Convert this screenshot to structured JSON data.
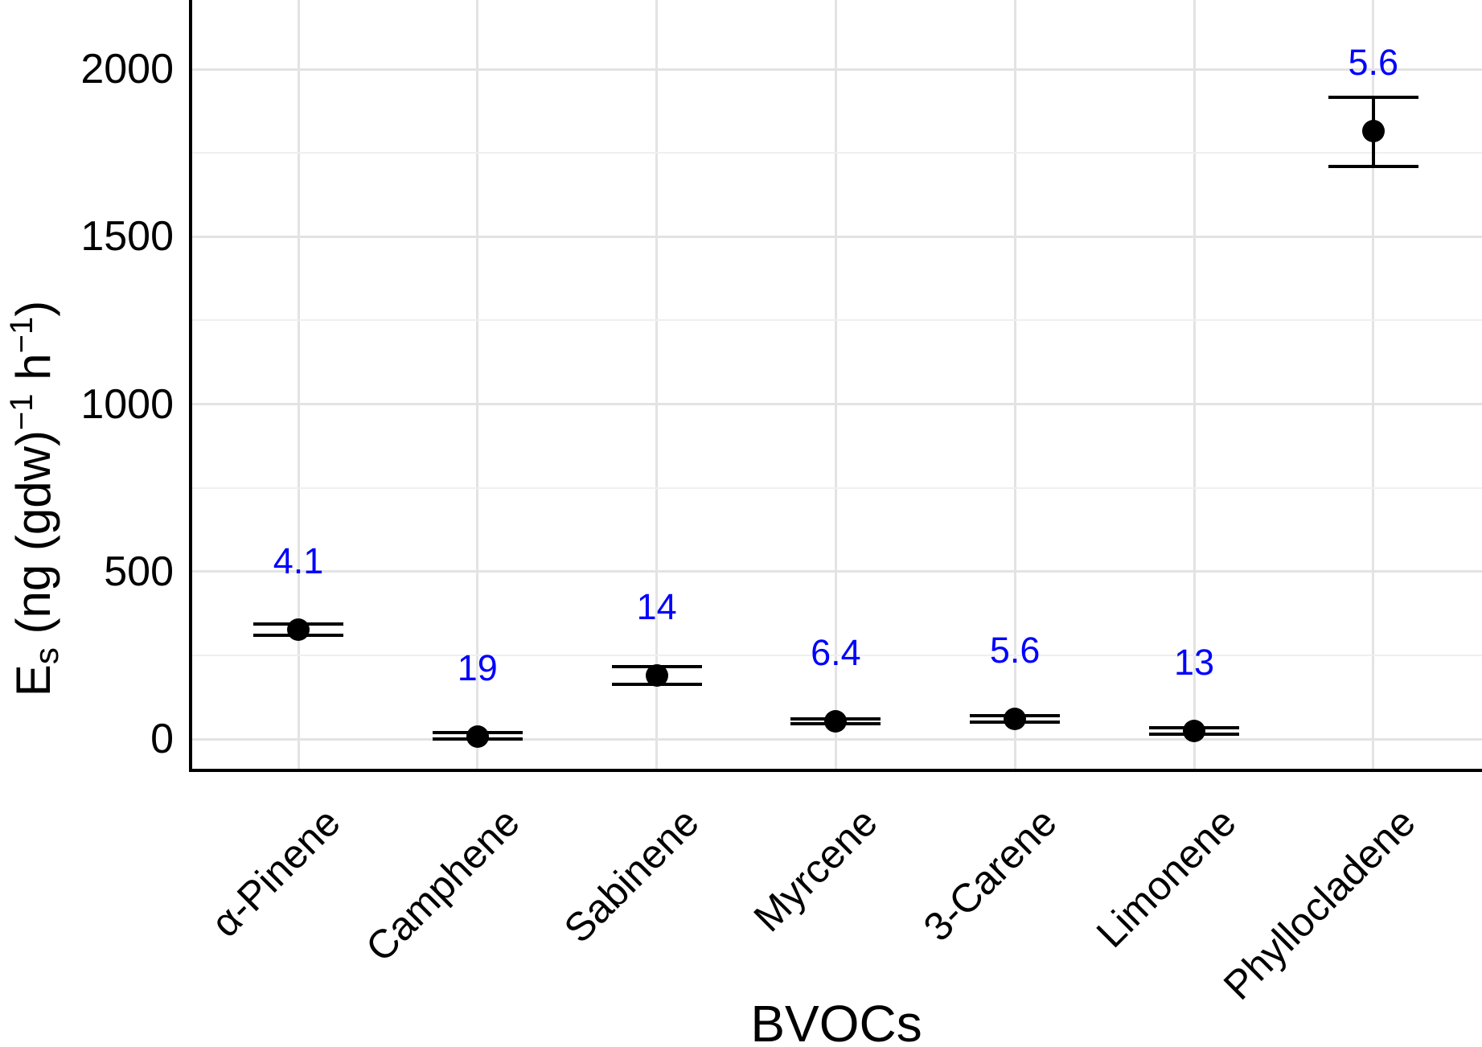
{
  "figure": {
    "background": "#ffffff",
    "axis_color": "#000000",
    "grid_major_color": "#e3e3e3",
    "grid_minor_color": "#efefef",
    "point_color": "#000000",
    "point_label_color": "#0000ff"
  },
  "x_axis": {
    "title": "BVOCs"
  },
  "y_axis": {
    "title_parts": {
      "main": "E",
      "sub": "s",
      "segment1": " (ng (gdw)",
      "sup1": "−1",
      "segment2": " h",
      "sup2": "−1",
      "segment3": ")"
    },
    "ticks": [
      "0",
      "500",
      "1000",
      "1500",
      "2000"
    ]
  },
  "chart_data": {
    "type": "scatter",
    "subtype": "point-with-errorbars",
    "title": "",
    "xlabel": "BVOCs",
    "ylabel": "Es (ng (gdw)−1 h−1)",
    "categories": [
      "α-Pinene",
      "Camphene",
      "Sabinene",
      "Myrcene",
      "3-Carene",
      "Limonene",
      "Phyllocladene"
    ],
    "series": [
      {
        "name": "Es",
        "values": [
          327,
          8,
          190,
          53,
          60,
          24,
          1815
        ],
        "error_low": [
          310,
          0,
          163,
          46,
          50,
          14,
          1710
        ],
        "error_high": [
          343,
          20,
          216,
          60,
          70,
          34,
          1915
        ]
      }
    ],
    "point_labels": [
      "4.1",
      "19",
      "14",
      "6.4",
      "5.6",
      "13",
      "5.6"
    ],
    "ylim": [
      -94,
      2206
    ],
    "yticks": [
      0,
      500,
      1000,
      1500,
      2000
    ],
    "yminor": [
      250,
      750,
      1250,
      1750
    ],
    "grid": true,
    "legend": false
  }
}
